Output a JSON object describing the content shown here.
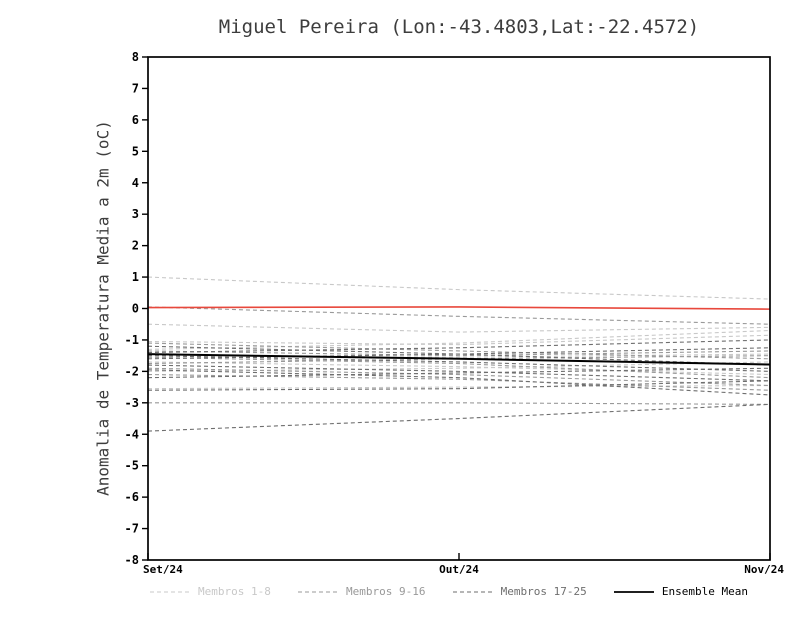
{
  "chart_data": {
    "type": "line",
    "title": "Miguel Pereira (Lon:-43.4803,Lat:-22.4572)",
    "ylabel": "Anomalia de Temperatura Media a 2m (oC)",
    "xlabel": "",
    "x": [
      0,
      1,
      2
    ],
    "xlim": [
      0,
      2
    ],
    "ylim": [
      -8,
      8
    ],
    "x_tick_labels": [
      "Set/24",
      "Out/24",
      "Nov/24"
    ],
    "y_ticks": [
      -8,
      -7,
      -6,
      -5,
      -4,
      -3,
      -2,
      -1,
      0,
      1,
      2,
      3,
      4,
      5,
      6,
      7,
      8
    ],
    "grid": false,
    "legend_position": "bottom",
    "zero_line": {
      "name": "zero-reference-line",
      "color": "#e8483c",
      "values": [
        0.03,
        0.05,
        -0.02
      ]
    },
    "ensemble_mean": {
      "name": "Ensemble Mean",
      "color": "#000000",
      "values": [
        -1.45,
        -1.6,
        -1.78
      ]
    },
    "groups": [
      {
        "label": "Membros 1-8",
        "color": "#c8c8c8",
        "members": [
          [
            1.0,
            0.6,
            0.3
          ],
          [
            -0.5,
            -0.75,
            -0.6
          ],
          [
            -1.05,
            -1.15,
            -0.85
          ],
          [
            -1.3,
            -1.1,
            -0.7
          ],
          [
            -1.5,
            -1.55,
            -1.45
          ],
          [
            -1.7,
            -1.85,
            -2.1
          ],
          [
            -2.0,
            -1.9,
            -1.7
          ],
          [
            -2.55,
            -2.5,
            -2.45
          ]
        ]
      },
      {
        "label": "Membros 9-16",
        "color": "#999999",
        "members": [
          [
            0.05,
            -0.25,
            -0.5
          ],
          [
            -1.1,
            -1.35,
            -1.6
          ],
          [
            -1.35,
            -1.5,
            -1.35
          ],
          [
            -1.55,
            -1.75,
            -2.2
          ],
          [
            -1.75,
            -1.6,
            -1.5
          ],
          [
            -1.9,
            -2.1,
            -2.45
          ],
          [
            -2.1,
            -2.25,
            -2.6
          ],
          [
            -3.0,
            -3.0,
            -3.05
          ]
        ]
      },
      {
        "label": "Membros 17-25",
        "color": "#6e6e6e",
        "members": [
          [
            -1.2,
            -1.45,
            -1.8
          ],
          [
            -1.4,
            -1.25,
            -1.0
          ],
          [
            -1.5,
            -1.7,
            -2.0
          ],
          [
            -1.6,
            -1.45,
            -1.25
          ],
          [
            -1.8,
            -2.0,
            -2.3
          ],
          [
            -1.95,
            -2.2,
            -2.75
          ],
          [
            -2.2,
            -2.05,
            -1.9
          ],
          [
            -2.6,
            -2.55,
            -2.3
          ],
          [
            -3.9,
            -3.5,
            -3.05
          ]
        ]
      }
    ],
    "legend": [
      {
        "label": "Membros 1-8",
        "color": "#c8c8c8",
        "dashed": true
      },
      {
        "label": "Membros 9-16",
        "color": "#999999",
        "dashed": true
      },
      {
        "label": "Membros 17-25",
        "color": "#6e6e6e",
        "dashed": true
      },
      {
        "label": "Ensemble Mean",
        "color": "#000000",
        "dashed": false
      }
    ]
  }
}
